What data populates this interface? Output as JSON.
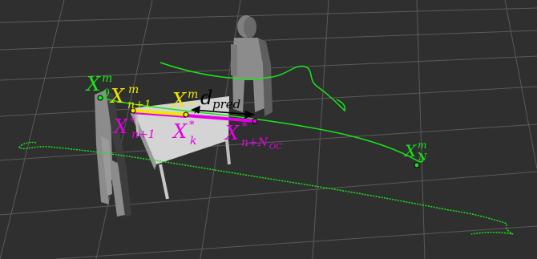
{
  "colors": {
    "background": "#2f2f2f",
    "grid": "#5c5c5c",
    "trajectory": "#19e619",
    "reference_segment": "#f0e600",
    "predicted_segment": "#e600e6",
    "label_green": "#19e619",
    "label_yellow": "#f0e600",
    "label_magenta": "#e600e6",
    "label_black": "#000000",
    "table_top": "#d6d6d6",
    "figure_body": "#8a8a8a"
  },
  "labels": {
    "x0": {
      "base": "X",
      "sup": "m",
      "sub": "0"
    },
    "xn1_yellow": {
      "base": "X",
      "sup": "m",
      "sub": "n+1"
    },
    "xstar": {
      "base": "X",
      "sup": "m",
      "sub": "*"
    },
    "dpred": {
      "base": "d",
      "sub": "pred"
    },
    "xn1_magenta": {
      "base": "X",
      "sup": "*",
      "sub": "n+1"
    },
    "xk": {
      "base": "X",
      "sup": "*",
      "sub": "k"
    },
    "xnoc": {
      "base": "X",
      "sup": "*",
      "sub": "n+N",
      "subsub": "OC"
    },
    "xN": {
      "base": "X",
      "sup": "m",
      "sub": "N"
    }
  }
}
